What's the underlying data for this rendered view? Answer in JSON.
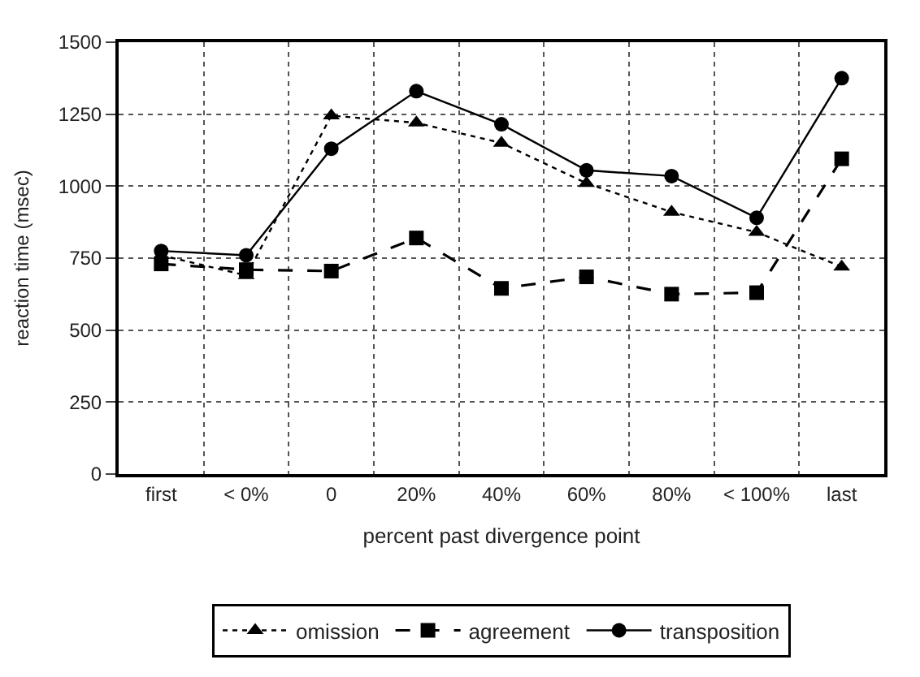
{
  "chart_data": {
    "type": "line",
    "xlabel": "percent past divergence point",
    "ylabel": "reaction time (msec)",
    "categories": [
      "first",
      "< 0%",
      "0",
      "20%",
      "40%",
      "60%",
      "80%",
      "< 100%",
      "last"
    ],
    "series": [
      {
        "name": "omission",
        "color": "#000000",
        "marker": "triangle",
        "line_style": "dotted",
        "values": [
          760,
          690,
          1245,
          1220,
          1150,
          1010,
          910,
          840,
          720
        ]
      },
      {
        "name": "agreement",
        "color": "#000000",
        "marker": "square",
        "line_style": "dashed",
        "values": [
          730,
          710,
          705,
          820,
          645,
          685,
          625,
          630,
          1095
        ]
      },
      {
        "name": "transposition",
        "color": "#000000",
        "marker": "circle",
        "line_style": "solid",
        "values": [
          775,
          760,
          1130,
          1330,
          1215,
          1055,
          1035,
          890,
          1375
        ]
      }
    ],
    "ylim": [
      0,
      1500
    ],
    "yticks": [
      0,
      250,
      500,
      750,
      1000,
      1250,
      1500
    ],
    "grid": true,
    "legend": "bottom"
  }
}
